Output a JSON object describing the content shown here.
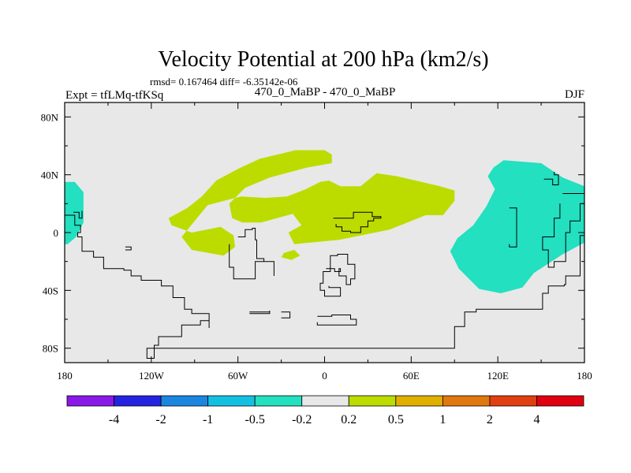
{
  "chart_data": {
    "type": "heatmap",
    "title": "Velocity Potential at 200 hPa (km2/s)",
    "stats_line": "rmsd= 0.167464 diff= -6.35142e-06",
    "left_label": "Expt = tfLMq-tfKSq",
    "center_label": "470_0_MaBP - 470_0_MaBP",
    "right_label": "DJF",
    "x_ticks": [
      "180",
      "120W",
      "60W",
      "0",
      "60E",
      "120E",
      "180"
    ],
    "y_ticks": [
      "80N",
      "40N",
      "0",
      "40S",
      "80S"
    ],
    "x_range": [
      -180,
      180
    ],
    "y_range": [
      -90,
      90
    ],
    "colorbar": {
      "labels": [
        "-4",
        "-2",
        "-1",
        "-0.5",
        "-0.2",
        "0.2",
        "0.5",
        "1",
        "2",
        "4"
      ],
      "colors": [
        "#8a18e8",
        "#2424e0",
        "#1a86e0",
        "#14c0e2",
        "#22e0c0",
        "#e8e8e8",
        "#bcdc00",
        "#e0b000",
        "#e07810",
        "#e04010",
        "#e00010"
      ]
    },
    "background_color": "#e8e8e8",
    "regions": [
      {
        "name": "positive-0.2-0.5-region",
        "level": "0.2 to 0.5",
        "color": "#bcdc00",
        "points": [
          [
            -108,
            10
          ],
          [
            -95,
            17
          ],
          [
            -85,
            25
          ],
          [
            -75,
            36
          ],
          [
            -60,
            44
          ],
          [
            -45,
            51
          ],
          [
            -20,
            57
          ],
          [
            0,
            57
          ],
          [
            5,
            54
          ],
          [
            5,
            48
          ],
          [
            -12,
            45
          ],
          [
            -38,
            38
          ],
          [
            -55,
            31
          ],
          [
            -66,
            20
          ],
          [
            -64,
            10
          ],
          [
            -57,
            7
          ],
          [
            -44,
            7
          ],
          [
            -22,
            13
          ],
          [
            -16,
            5
          ],
          [
            -25,
            0
          ],
          [
            -21,
            -8
          ],
          [
            10,
            -5
          ],
          [
            45,
            2
          ],
          [
            70,
            12
          ],
          [
            82,
            12
          ],
          [
            90,
            22
          ],
          [
            90,
            29
          ],
          [
            80,
            32
          ],
          [
            50,
            39
          ],
          [
            36,
            41
          ],
          [
            25,
            32
          ],
          [
            11,
            32
          ],
          [
            3,
            36
          ],
          [
            -3,
            35
          ],
          [
            -13,
            30
          ],
          [
            -26,
            25
          ],
          [
            -41,
            24
          ],
          [
            -58,
            25
          ],
          [
            -81,
            19
          ],
          [
            -99,
            -3
          ],
          [
            -92,
            -12
          ],
          [
            -70,
            -16
          ],
          [
            -62,
            -10
          ],
          [
            -63,
            -2
          ],
          [
            -72,
            4
          ],
          [
            -92,
            0
          ],
          [
            -106,
            5
          ]
        ]
      },
      {
        "name": "positive-small-blob",
        "level": "0.2 to 0.5",
        "color": "#bcdc00",
        "points": [
          [
            -28,
            -14
          ],
          [
            -21,
            -12
          ],
          [
            -17,
            -16
          ],
          [
            -23,
            -19
          ],
          [
            -30,
            -17
          ]
        ]
      },
      {
        "name": "negative-east-region",
        "level": "-0.5 to -0.2",
        "color": "#22e0c0",
        "points": [
          [
            117,
            45
          ],
          [
            124,
            50
          ],
          [
            150,
            48
          ],
          [
            165,
            38
          ],
          [
            180,
            32
          ],
          [
            180,
            -7
          ],
          [
            165,
            -15
          ],
          [
            145,
            -28
          ],
          [
            137,
            -38
          ],
          [
            122,
            -42
          ],
          [
            107,
            -39
          ],
          [
            93,
            -25
          ],
          [
            87,
            -13
          ],
          [
            92,
            -4
          ],
          [
            103,
            5
          ],
          [
            112,
            18
          ],
          [
            118,
            30
          ],
          [
            113,
            39
          ]
        ]
      },
      {
        "name": "negative-west-edge-region",
        "level": "-0.5 to -0.2",
        "color": "#22e0c0",
        "points": [
          [
            -180,
            35
          ],
          [
            -173,
            35
          ],
          [
            -167,
            28
          ],
          [
            -167,
            7
          ],
          [
            -172,
            -3
          ],
          [
            -178,
            -8
          ],
          [
            -180,
            -8
          ]
        ]
      }
    ],
    "coastlines": [
      [
        [
          -180,
          12
        ],
        [
          -173,
          5
        ],
        [
          -169,
          0
        ],
        [
          -171,
          -3
        ],
        [
          -168,
          -13
        ],
        [
          -160,
          -17
        ],
        [
          -153,
          -25
        ],
        [
          -139,
          -26
        ],
        [
          -134,
          -30
        ],
        [
          -127,
          -33
        ],
        [
          -113,
          -37
        ],
        [
          -105,
          -45
        ],
        [
          -97,
          -53
        ],
        [
          -92,
          -56
        ],
        [
          -80,
          -66
        ],
        [
          -80,
          -61
        ],
        [
          -86,
          -64
        ],
        [
          -99,
          -72
        ],
        [
          -115,
          -78
        ],
        [
          -118,
          -87
        ],
        [
          -123,
          -80
        ],
        [
          90,
          -80
        ],
        [
          90,
          -65
        ],
        [
          97,
          -55
        ],
        [
          105,
          -53
        ],
        [
          127,
          -53
        ],
        [
          140,
          -53
        ],
        [
          151,
          -42
        ],
        [
          155,
          -37
        ],
        [
          166,
          -36
        ],
        [
          167,
          -30
        ],
        [
          177,
          -20
        ],
        [
          177,
          -2
        ],
        [
          180,
          5
        ]
      ],
      [
        [
          -60,
          -3
        ],
        [
          -55,
          2
        ],
        [
          -50,
          3
        ],
        [
          -48,
          -5
        ],
        [
          -47,
          -18
        ],
        [
          -42,
          -20
        ],
        [
          -35,
          -30
        ],
        [
          -35,
          -20
        ],
        [
          -48,
          -32
        ],
        [
          -57,
          -32
        ],
        [
          -63,
          -24
        ],
        [
          -66,
          -8
        ]
      ],
      [
        [
          -52,
          -55
        ],
        [
          -38,
          -54
        ],
        [
          -38,
          -56
        ],
        [
          -52,
          -56
        ]
      ],
      [
        [
          -30,
          -59
        ],
        [
          -24,
          -59
        ],
        [
          -24,
          -55
        ],
        [
          -30,
          -55
        ]
      ],
      [
        [
          -5,
          -58
        ],
        [
          5,
          -57
        ],
        [
          18,
          -60
        ],
        [
          22,
          -64
        ],
        [
          8,
          -64
        ],
        [
          -5,
          -62
        ]
      ],
      [
        [
          1,
          -25
        ],
        [
          7,
          -27
        ],
        [
          11,
          -25
        ],
        [
          10,
          -30
        ],
        [
          15,
          -36
        ],
        [
          18,
          -32
        ],
        [
          21,
          -22
        ],
        [
          16,
          -15
        ],
        [
          9,
          -16
        ],
        [
          4,
          -27
        ],
        [
          -1,
          -35
        ],
        [
          -3,
          -40
        ],
        [
          0,
          -44
        ],
        [
          8,
          -44
        ],
        [
          11,
          -38
        ],
        [
          3,
          -37
        ]
      ],
      [
        [
          6,
          10
        ],
        [
          14,
          10
        ],
        [
          20,
          14
        ],
        [
          27,
          14
        ],
        [
          33,
          11
        ],
        [
          39,
          10
        ],
        [
          34,
          8
        ],
        [
          30,
          4
        ],
        [
          25,
          0
        ],
        [
          18,
          1
        ],
        [
          12,
          4
        ],
        [
          8,
          6
        ]
      ],
      [
        [
          128,
          17
        ],
        [
          133,
          17
        ],
        [
          133,
          -10
        ],
        [
          128,
          -8
        ]
      ],
      [
        [
          152,
          37
        ],
        [
          158,
          33
        ],
        [
          162,
          40
        ],
        [
          159,
          42
        ]
      ],
      [
        [
          165,
          27
        ],
        [
          172,
          27
        ],
        [
          180,
          20
        ],
        [
          177,
          8
        ],
        [
          170,
          0
        ],
        [
          167,
          -20
        ],
        [
          159,
          -24
        ],
        [
          155,
          -12
        ],
        [
          151,
          -3
        ],
        [
          159,
          10
        ],
        [
          163,
          20
        ]
      ],
      [
        [
          -174,
          14
        ],
        [
          -170,
          10
        ],
        [
          -168,
          15
        ]
      ],
      [
        [
          -138,
          -10
        ],
        [
          -134,
          -10
        ],
        [
          -134,
          -12
        ],
        [
          -138,
          -12
        ]
      ]
    ]
  }
}
